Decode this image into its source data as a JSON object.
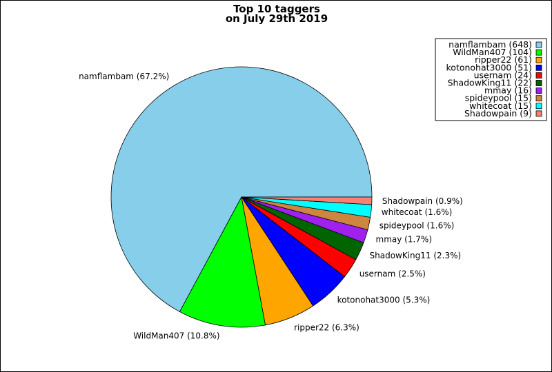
{
  "chart_data": {
    "type": "pie",
    "title": [
      "Top 10 taggers",
      "on July 29th 2019"
    ],
    "legend_placement": "top-right",
    "slices": [
      {
        "name": "namflambam",
        "value": 648,
        "percent_label": "namflambam (67.2%)",
        "legend_label": "namflambam (648)",
        "color": "#87ceeb"
      },
      {
        "name": "WildMan407",
        "value": 104,
        "percent_label": "WildMan407 (10.8%)",
        "legend_label": "WildMan407 (104)",
        "color": "#00ff00"
      },
      {
        "name": "ripper22",
        "value": 61,
        "percent_label": "ripper22 (6.3%)",
        "legend_label": "ripper22 (61)",
        "color": "#ffa500"
      },
      {
        "name": "kotonohat3000",
        "value": 51,
        "percent_label": "kotonohat3000 (5.3%)",
        "legend_label": "kotonohat3000 (51)",
        "color": "#0000ff"
      },
      {
        "name": "usernam",
        "value": 24,
        "percent_label": "usernam (2.5%)",
        "legend_label": "usernam (24)",
        "color": "#ff0000"
      },
      {
        "name": "ShadowKing11",
        "value": 22,
        "percent_label": "ShadowKing11 (2.3%)",
        "legend_label": "ShadowKing11 (22)",
        "color": "#006400"
      },
      {
        "name": "mmay",
        "value": 16,
        "percent_label": "mmay (1.7%)",
        "legend_label": "mmay (16)",
        "color": "#a020f0"
      },
      {
        "name": "spideypool",
        "value": 15,
        "percent_label": "spideypool (1.6%)",
        "legend_label": "spideypool (15)",
        "color": "#cd853f"
      },
      {
        "name": "whitecoat",
        "value": 15,
        "percent_label": "whitecoat (1.6%)",
        "legend_label": "whitecoat (15)",
        "color": "#00ffff"
      },
      {
        "name": "Shadowpain",
        "value": 9,
        "percent_label": "Shadowpain (0.9%)",
        "legend_label": "Shadowpain (9)",
        "color": "#fa8072"
      }
    ]
  }
}
